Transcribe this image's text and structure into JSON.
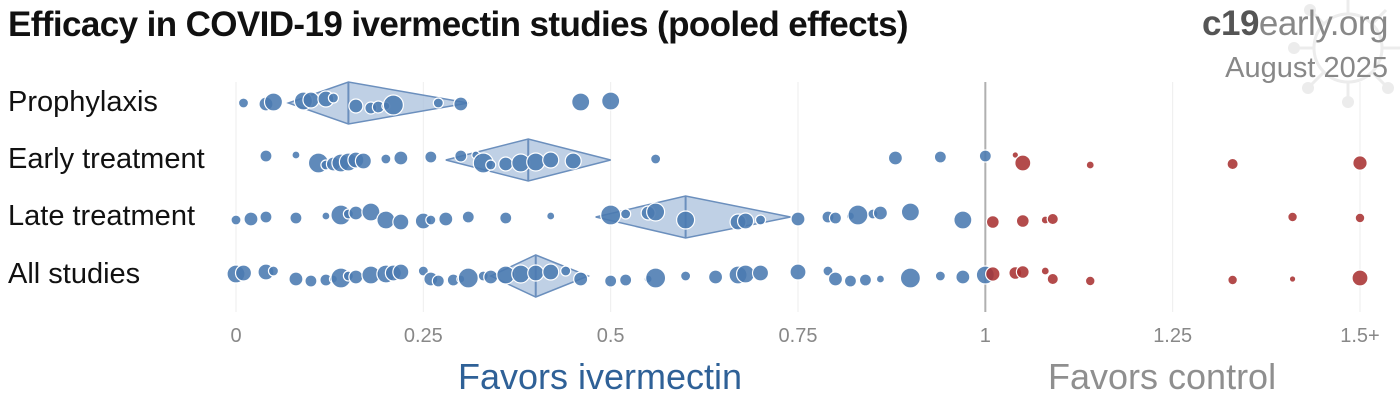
{
  "title": "Efficacy in COVID-19 ivermectin studies (pooled effects)",
  "brand": {
    "part1": "c19",
    "part2": "early",
    "part3": ".org"
  },
  "date": "August 2025",
  "icons": {
    "decoration": "virus-watermark-icon"
  },
  "colors": {
    "favor": "#4a7ab0",
    "against": "#a83232",
    "summary": "#a9c0dc",
    "summary_stroke": "#6b8fbd",
    "null_line": "#b0b0b0"
  },
  "chart_data": {
    "type": "scatter",
    "title": "Efficacy in COVID-19 ivermectin studies (pooled effects)",
    "xlim": [
      0,
      1.5
    ],
    "xticks": [
      0,
      0.25,
      0.5,
      0.75,
      1,
      1.25,
      1.5
    ],
    "xtick_labels": [
      "0",
      "0.25",
      "0.5",
      "0.75",
      "1",
      "1.25",
      "1.5+"
    ],
    "null_value": 1,
    "favors_left": "Favors ivermectin",
    "favors_right": "Favors control",
    "categories": [
      "Prophylaxis",
      "Early treatment",
      "Late treatment",
      "All studies"
    ],
    "pooled": [
      {
        "category": "Prophylaxis",
        "estimate": 0.15,
        "ci": [
          0.07,
          0.31
        ]
      },
      {
        "category": "Early treatment",
        "estimate": 0.39,
        "ci": [
          0.28,
          0.5
        ]
      },
      {
        "category": "Late treatment",
        "estimate": 0.6,
        "ci": [
          0.48,
          0.74
        ]
      },
      {
        "category": "All studies",
        "estimate": 0.4,
        "ci": [
          0.34,
          0.47
        ]
      }
    ],
    "studies": {
      "Prophylaxis": [
        0.01,
        0.04,
        0.05,
        0.09,
        0.1,
        0.12,
        0.13,
        0.16,
        0.18,
        0.19,
        0.2,
        0.21,
        0.27,
        0.3,
        0.46,
        0.5
      ],
      "Early treatment": [
        0.04,
        0.08,
        0.11,
        0.12,
        0.13,
        0.14,
        0.15,
        0.16,
        0.17,
        0.2,
        0.22,
        0.26,
        0.3,
        0.32,
        0.33,
        0.34,
        0.36,
        0.38,
        0.4,
        0.42,
        0.45,
        0.56,
        0.88,
        0.94,
        1.0,
        1.04,
        1.05,
        1.14,
        1.33,
        1.5
      ],
      "Late treatment": [
        0.0,
        0.02,
        0.04,
        0.08,
        0.12,
        0.14,
        0.15,
        0.16,
        0.18,
        0.2,
        0.22,
        0.25,
        0.26,
        0.28,
        0.31,
        0.36,
        0.42,
        0.5,
        0.52,
        0.55,
        0.56,
        0.6,
        0.67,
        0.68,
        0.7,
        0.75,
        0.79,
        0.8,
        0.82,
        0.83,
        0.85,
        0.86,
        0.9,
        0.97,
        1.01,
        1.05,
        1.08,
        1.09,
        1.41,
        1.5
      ],
      "All studies": [
        0.0,
        0.01,
        0.04,
        0.05,
        0.08,
        0.1,
        0.12,
        0.13,
        0.14,
        0.15,
        0.16,
        0.18,
        0.2,
        0.21,
        0.22,
        0.25,
        0.26,
        0.27,
        0.29,
        0.3,
        0.31,
        0.33,
        0.34,
        0.36,
        0.38,
        0.4,
        0.42,
        0.44,
        0.46,
        0.5,
        0.52,
        0.55,
        0.56,
        0.6,
        0.64,
        0.67,
        0.68,
        0.7,
        0.75,
        0.79,
        0.8,
        0.82,
        0.84,
        0.86,
        0.9,
        0.94,
        0.97,
        1.0,
        1.01,
        1.04,
        1.05,
        1.08,
        1.09,
        1.14,
        1.33,
        1.41,
        1.5
      ]
    }
  }
}
